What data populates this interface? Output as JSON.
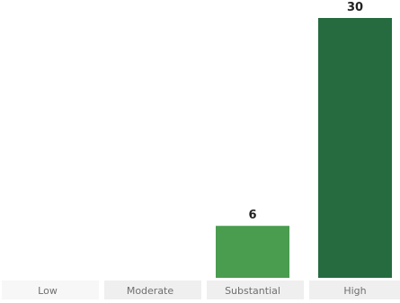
{
  "chart_data": {
    "type": "bar",
    "title": "",
    "xlabel": "",
    "ylabel": "",
    "categories": [
      "Low",
      "Moderate",
      "Substantial",
      "High"
    ],
    "values": [
      0,
      0,
      6,
      30
    ],
    "data_labels": [
      "",
      "",
      "6",
      "30"
    ],
    "ylim": [
      0,
      30
    ],
    "grid": false,
    "legend": "none",
    "colors": {
      "Substantial": "#4a9c4f",
      "High": "#256b3f",
      "tick_band": "#efefef",
      "tick_text": "#6f6f6f",
      "label_text": "#222222"
    }
  }
}
